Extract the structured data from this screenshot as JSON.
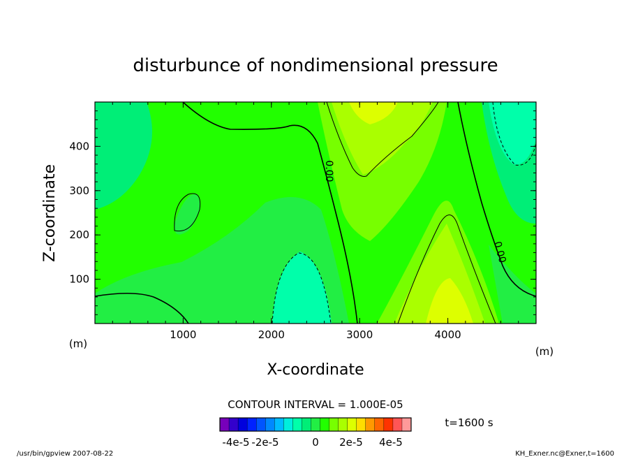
{
  "chart_data": {
    "type": "heatmap",
    "title": "disturbunce of nondimensional pressure",
    "xlabel": "X-coordinate",
    "ylabel": "Z-coordinate",
    "x_unit": "(m)",
    "y_unit": "(m)",
    "xlim": [
      0,
      5000
    ],
    "ylim": [
      0,
      500
    ],
    "x_ticks": [
      "1000",
      "2000",
      "3000",
      "4000"
    ],
    "y_ticks": [
      "100",
      "200",
      "300",
      "400"
    ],
    "contour_labels": [
      "0.00",
      "0.00"
    ],
    "contour_interval": "CONTOUR INTERVAL = 1.000E-05",
    "time_label": "t=1600 s",
    "colorbar": {
      "tick_labels": [
        "-4e-5",
        "-2e-5",
        "0",
        "2e-5",
        "4e-5"
      ],
      "colors": [
        "#7700bb",
        "#3300cc",
        "#0000dd",
        "#0022ff",
        "#0055ff",
        "#0088ff",
        "#00bbff",
        "#00eedd",
        "#00ffaa",
        "#00ee77",
        "#22ee44",
        "#22ff00",
        "#77ff00",
        "#aaff00",
        "#ddff00",
        "#ffdd00",
        "#ff9900",
        "#ff6600",
        "#ff3300",
        "#ff5555",
        "#ff9999"
      ]
    },
    "field_colors": {
      "zero_band": "#22ff00",
      "negative_1": "#22ee44",
      "negative_2": "#00ee77",
      "negative_3": "#00ffaa",
      "positive_1": "#77ff00",
      "positive_2": "#aaff00",
      "positive_3": "#ddff00"
    }
  },
  "footer": {
    "left": "/usr/bin/gpview   2007-08-22",
    "right": "KH_Exner.nc@Exner,t=1600"
  }
}
